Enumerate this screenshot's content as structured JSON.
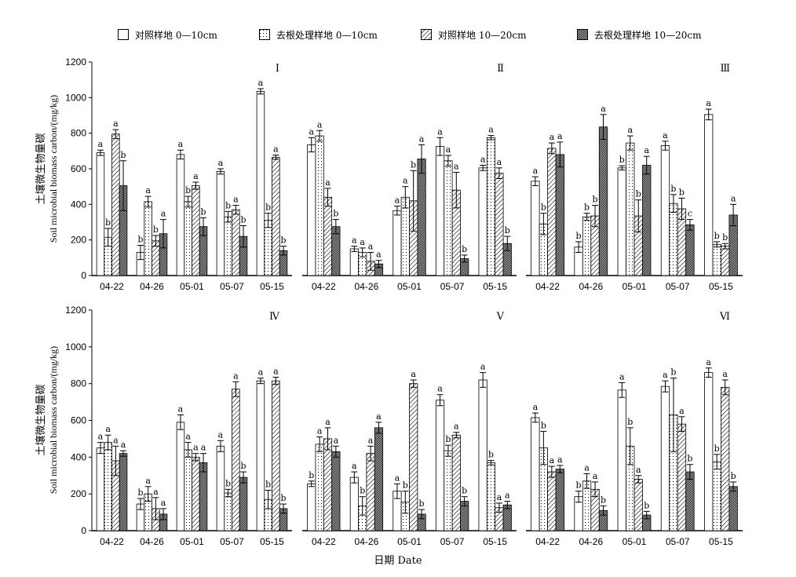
{
  "legend": [
    {
      "name": "对照样地 0—10cm",
      "pattern": "white"
    },
    {
      "name": "去根处理样地 0—10cm",
      "pattern": "dots"
    },
    {
      "name": "对照样地 10—20cm",
      "pattern": "hatch"
    },
    {
      "name": "去根处理样地 10—20cm",
      "pattern": "cross"
    }
  ],
  "xlabel": "日期 Date",
  "ylabel_cn": "土壤微生物量碳",
  "ylabel_en": "Soil microbial biomass carbon/(mg/kg)",
  "colors": {
    "bar_stroke": "#000000",
    "background": "#ffffff"
  },
  "chart_data": [
    {
      "panel": "Ⅰ",
      "type": "bar",
      "ylim": [
        0,
        1200
      ],
      "yticks": [
        0,
        200,
        400,
        600,
        800,
        1000,
        1200
      ],
      "categories": [
        "04-22",
        "04-26",
        "05-01",
        "05-07",
        "05-15"
      ],
      "series": [
        {
          "name": "对照样地 0—10cm",
          "values": [
            690,
            130,
            680,
            585,
            1035
          ],
          "errors": [
            15,
            40,
            25,
            15,
            15
          ],
          "letters": [
            "a",
            "b",
            "a",
            "a",
            "a"
          ]
        },
        {
          "name": "去根处理样地 0—10cm",
          "values": [
            215,
            415,
            415,
            330,
            310
          ],
          "errors": [
            50,
            30,
            30,
            30,
            40
          ],
          "letters": [
            "b",
            "a",
            "b",
            "b",
            "b"
          ]
        },
        {
          "name": "对照样地 10—20cm",
          "values": [
            795,
            195,
            505,
            370,
            665
          ],
          "errors": [
            25,
            30,
            20,
            25,
            12
          ],
          "letters": [
            "a",
            "b",
            "a",
            "a",
            "a"
          ]
        },
        {
          "name": "去根处理样地 10—20cm",
          "values": [
            505,
            235,
            275,
            220,
            140
          ],
          "errors": [
            140,
            80,
            50,
            60,
            25
          ],
          "letters": [
            "b",
            "a",
            "b",
            "b",
            "b"
          ]
        }
      ]
    },
    {
      "panel": "Ⅱ",
      "type": "bar",
      "ylim": [
        0,
        1200
      ],
      "yticks": [
        0,
        200,
        400,
        600,
        800,
        1000,
        1200
      ],
      "categories": [
        "04-22",
        "04-26",
        "05-01",
        "05-07",
        "05-15"
      ],
      "series": [
        {
          "name": "对照样地 0—10cm",
          "values": [
            735,
            150,
            365,
            725,
            605
          ],
          "errors": [
            40,
            15,
            25,
            50,
            15
          ],
          "letters": [
            "a",
            "a",
            "a",
            "a",
            "a"
          ]
        },
        {
          "name": "去根处理样地 0—10cm",
          "values": [
            785,
            130,
            440,
            645,
            775
          ],
          "errors": [
            30,
            25,
            60,
            30,
            12
          ],
          "letters": [
            "a",
            "a",
            "a",
            "a",
            "a"
          ]
        },
        {
          "name": "对照样地 10—20cm",
          "values": [
            440,
            80,
            420,
            480,
            575
          ],
          "errors": [
            50,
            50,
            170,
            100,
            30
          ],
          "letters": [
            "a",
            "a",
            "b",
            "a",
            "a"
          ]
        },
        {
          "name": "去根处理样地 10—20cm",
          "values": [
            275,
            65,
            655,
            95,
            180
          ],
          "errors": [
            40,
            20,
            80,
            20,
            40
          ],
          "letters": [
            "b",
            "a",
            "a",
            "b",
            "b"
          ]
        }
      ]
    },
    {
      "panel": "Ⅲ",
      "type": "bar",
      "ylim": [
        0,
        1200
      ],
      "yticks": [
        0,
        200,
        400,
        600,
        800,
        1000,
        1200
      ],
      "categories": [
        "04-22",
        "04-26",
        "05-01",
        "05-07",
        "05-15"
      ],
      "series": [
        {
          "name": "对照样地 0—10cm",
          "values": [
            530,
            160,
            605,
            730,
            905
          ],
          "errors": [
            25,
            30,
            12,
            25,
            30
          ],
          "letters": [
            "a",
            "b",
            "b",
            "a",
            "a"
          ]
        },
        {
          "name": "去根处理样地 0—10cm",
          "values": [
            290,
            330,
            745,
            405,
            175
          ],
          "errors": [
            60,
            20,
            40,
            50,
            15
          ],
          "letters": [
            "b",
            "b",
            "a",
            "b",
            "b"
          ]
        },
        {
          "name": "对照样地 10—20cm",
          "values": [
            715,
            335,
            335,
            375,
            165
          ],
          "errors": [
            30,
            60,
            90,
            60,
            15
          ],
          "letters": [
            "a",
            "b",
            "b",
            "b",
            "b"
          ]
        },
        {
          "name": "去根处理样地 10—20cm",
          "values": [
            680,
            835,
            620,
            285,
            340
          ],
          "errors": [
            70,
            70,
            50,
            30,
            60
          ],
          "letters": [
            "a",
            "a",
            "a",
            "c",
            "a"
          ]
        }
      ]
    },
    {
      "panel": "Ⅳ",
      "type": "bar",
      "ylim": [
        0,
        1200
      ],
      "yticks": [
        0,
        200,
        400,
        600,
        800,
        1000,
        1200
      ],
      "categories": [
        "04-22",
        "04-26",
        "05-01",
        "05-07",
        "05-15"
      ],
      "series": [
        {
          "name": "对照样地 0—10cm",
          "values": [
            450,
            145,
            590,
            460,
            815
          ],
          "errors": [
            30,
            30,
            40,
            30,
            15
          ],
          "letters": [
            "a",
            "b",
            "a",
            "a",
            "a"
          ]
        },
        {
          "name": "去根处理样地 0—10cm",
          "values": [
            480,
            200,
            440,
            205,
            170
          ],
          "errors": [
            40,
            40,
            40,
            20,
            50
          ],
          "letters": [
            "a",
            "a",
            "a",
            "b",
            "b"
          ]
        },
        {
          "name": "对照样地 10—20cm",
          "values": [
            380,
            120,
            400,
            770,
            815
          ],
          "errors": [
            80,
            60,
            20,
            40,
            20
          ],
          "letters": [
            "a",
            "a",
            "a",
            "a",
            "a"
          ]
        },
        {
          "name": "去根处理样地 10—20cm",
          "values": [
            420,
            90,
            370,
            290,
            120
          ],
          "errors": [
            15,
            30,
            50,
            30,
            25
          ],
          "letters": [
            "a",
            "a",
            "a",
            "b",
            "b"
          ]
        }
      ]
    },
    {
      "panel": "Ⅴ",
      "type": "bar",
      "ylim": [
        0,
        1200
      ],
      "yticks": [
        0,
        200,
        400,
        600,
        800,
        1000,
        1200
      ],
      "categories": [
        "04-22",
        "04-26",
        "05-01",
        "05-07",
        "05-15"
      ],
      "series": [
        {
          "name": "对照样地 0—10cm",
          "values": [
            255,
            290,
            215,
            710,
            820
          ],
          "errors": [
            15,
            30,
            40,
            30,
            40
          ],
          "letters": [
            "b",
            "a",
            "a",
            "a",
            "a"
          ]
        },
        {
          "name": "去根处理样地 0—10cm",
          "values": [
            470,
            135,
            155,
            435,
            370
          ],
          "errors": [
            40,
            50,
            60,
            30,
            12
          ],
          "letters": [
            "a",
            "b",
            "b",
            "b",
            "b"
          ]
        },
        {
          "name": "对照样地 10—20cm",
          "values": [
            500,
            420,
            800,
            520,
            125
          ],
          "errors": [
            60,
            40,
            20,
            15,
            25
          ],
          "letters": [
            "a",
            "a",
            "a",
            "a",
            "a"
          ]
        },
        {
          "name": "去根处理样地 10—20cm",
          "values": [
            430,
            560,
            90,
            160,
            140
          ],
          "errors": [
            30,
            30,
            25,
            25,
            20
          ],
          "letters": [
            "a",
            "a",
            "b",
            "b",
            "a"
          ]
        }
      ]
    },
    {
      "panel": "Ⅵ",
      "type": "bar",
      "ylim": [
        0,
        1200
      ],
      "yticks": [
        0,
        200,
        400,
        600,
        800,
        1000,
        1200
      ],
      "categories": [
        "04-22",
        "04-26",
        "05-01",
        "05-07",
        "05-15"
      ],
      "series": [
        {
          "name": "对照样地 0—10cm",
          "values": [
            615,
            185,
            765,
            785,
            860
          ],
          "errors": [
            25,
            30,
            40,
            30,
            25
          ],
          "letters": [
            "a",
            "b",
            "a",
            "a",
            "a"
          ]
        },
        {
          "name": "去根处理样地 0—10cm",
          "values": [
            450,
            270,
            460,
            630,
            375
          ],
          "errors": [
            90,
            40,
            100,
            200,
            40
          ],
          "letters": [
            "b",
            "a",
            "b",
            "b",
            "b"
          ]
        },
        {
          "name": "对照样地 10—20cm",
          "values": [
            320,
            225,
            280,
            580,
            780
          ],
          "errors": [
            30,
            40,
            20,
            40,
            40
          ],
          "letters": [
            "a",
            "a",
            "a",
            "a",
            "a"
          ]
        },
        {
          "name": "去根处理样地 10—20cm",
          "values": [
            335,
            110,
            85,
            320,
            240
          ],
          "errors": [
            20,
            25,
            20,
            40,
            25
          ],
          "letters": [
            "a",
            "b",
            "b",
            "b",
            "b"
          ]
        }
      ]
    }
  ]
}
